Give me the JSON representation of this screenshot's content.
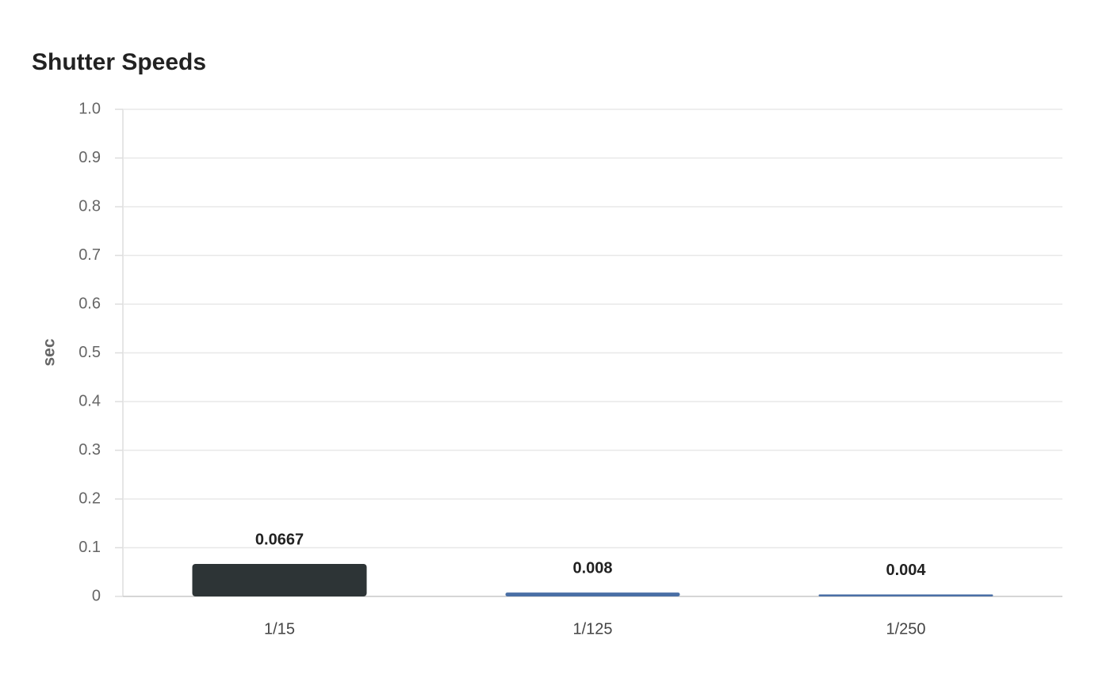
{
  "chart_data": {
    "type": "bar",
    "title": "Shutter Speeds",
    "y_label": "sec",
    "categories": [
      "1/15",
      "1/125",
      "1/250"
    ],
    "values": [
      0.0667,
      0.008,
      0.004
    ],
    "colors": [
      "#2d3436",
      "#4a6fa5",
      "#4a6fa5"
    ],
    "ylim": [
      0,
      1
    ],
    "yticks": [
      0,
      0.1,
      0.2,
      0.3,
      0.4,
      0.5,
      0.6,
      0.7,
      0.8,
      0.9,
      {
        "value": 1,
        "label": "1.0"
      }
    ],
    "grid": true
  }
}
